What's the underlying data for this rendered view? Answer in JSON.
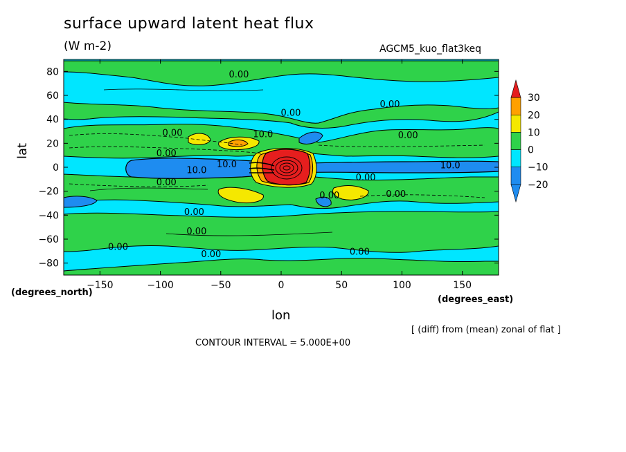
{
  "title": "surface upward latent heat flux",
  "units": "(W m-2)",
  "run_id": "AGCM5_kuo_flat3keq",
  "note": "[ (diff) from (mean) zonal of flat ]",
  "contour_interval": "CONTOUR INTERVAL = 5.000E+00",
  "chart_data": {
    "type": "heatmap",
    "title": "surface upward latent heat flux",
    "xlabel": "lon",
    "ylabel": "lat",
    "x_units": "(degrees_east)",
    "y_units": "(degrees_north)",
    "xlim": [
      -180,
      180
    ],
    "ylim": [
      -90,
      90
    ],
    "x_ticks": [
      -150,
      -100,
      -50,
      0,
      50,
      100,
      150
    ],
    "y_ticks": [
      -80,
      -60,
      -40,
      -20,
      0,
      20,
      40,
      60,
      80
    ],
    "x_tick_labels": [
      "−150",
      "−100",
      "−50",
      "0",
      "50",
      "100",
      "150"
    ],
    "y_tick_labels": [
      "−80",
      "−60",
      "−40",
      "−20",
      "0",
      "20",
      "40",
      "60",
      "80"
    ],
    "colorbar": {
      "levels": [
        -20,
        -10,
        0,
        10,
        20,
        30
      ],
      "labels": [
        "−20",
        "−10",
        "0",
        "10",
        "20",
        "30"
      ],
      "colors": [
        "#1e8cf0",
        "#00e6ff",
        "#2fd24a",
        "#f5e800",
        "#ffa000",
        "#e61e1e"
      ]
    },
    "contour_interval": 5.0,
    "contour_labels": [
      {
        "text": "0.00",
        "lon": -35,
        "lat": 78
      },
      {
        "text": "0.00",
        "lon": 8,
        "lat": 46
      },
      {
        "text": "0.00",
        "lon": 90,
        "lat": 53
      },
      {
        "text": "0.00",
        "lon": -90,
        "lat": 29
      },
      {
        "text": "10.0",
        "lon": -15,
        "lat": 28
      },
      {
        "text": "0.00",
        "lon": -95,
        "lat": 12
      },
      {
        "text": "10.0",
        "lon": -45,
        "lat": 3
      },
      {
        "text": "10.0",
        "lon": -70,
        "lat": -2
      },
      {
        "text": "0.00",
        "lon": 105,
        "lat": 27
      },
      {
        "text": "10.0",
        "lon": 140,
        "lat": 2
      },
      {
        "text": "0.00",
        "lon": 70,
        "lat": -8
      },
      {
        "text": "0.00",
        "lon": -95,
        "lat": -12
      },
      {
        "text": "0.00",
        "lon": 40,
        "lat": -23
      },
      {
        "text": "0.00",
        "lon": 95,
        "lat": -22
      },
      {
        "text": "0.00",
        "lon": -72,
        "lat": -37
      },
      {
        "text": "0.00",
        "lon": -70,
        "lat": -53
      },
      {
        "text": "0.00",
        "lon": -135,
        "lat": -66
      },
      {
        "text": "0.00",
        "lon": -58,
        "lat": -72
      },
      {
        "text": "0.00",
        "lon": 65,
        "lat": -70
      }
    ],
    "regions": [
      {
        "level": 0,
        "shape": "band",
        "lat_range": [
          44,
          84
        ],
        "note": "northern high-latitude band"
      },
      {
        "level": 0,
        "shape": "band",
        "lat_range": [
          -72,
          -30
        ],
        "note": "southern mid-latitude band"
      },
      {
        "level": 0,
        "shape": "band",
        "lat_range": [
          3,
          20
        ],
        "note": "northern subtropical band"
      },
      {
        "level": 0,
        "shape": "band",
        "lat_range": [
          -18,
          -4
        ],
        "note": "southern subtropical band"
      },
      {
        "level": -10,
        "shape": "band",
        "lat_range": [
          -4,
          4
        ],
        "note": "equatorial negative anomaly"
      },
      {
        "level": 30,
        "lon": 8,
        "lat": 0,
        "note": "positive maximum near 0° lon, equator"
      },
      {
        "level": 20,
        "lon": -35,
        "lat": 20,
        "note": "yellow/orange patch north"
      },
      {
        "level": 20,
        "lon": -30,
        "lat": -20,
        "note": "yellow/orange patch south"
      },
      {
        "level": 10,
        "lon": -75,
        "lat": 22,
        "note": "yellow patch"
      },
      {
        "level": 10,
        "lon": 65,
        "lat": -21,
        "note": "yellow patch"
      }
    ]
  }
}
